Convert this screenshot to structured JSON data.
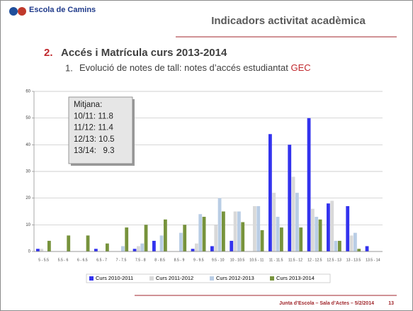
{
  "header": {
    "logo_text": "Escola de Camins",
    "title": "Indicadors activitat acadèmica"
  },
  "section": {
    "number": "2.",
    "title": "Accés i Matrícula curs 2013-2014"
  },
  "subsection": {
    "number": "1.",
    "text": "Evolució de notes de tall: notes d’accés estudiantat ",
    "highlight": "GEC"
  },
  "footer": {
    "text": "Junta d’Escola – Sala d’Actes – 5/2/2014",
    "page": "13"
  },
  "chart_data": {
    "type": "bar",
    "categories": [
      "5 - 5.5",
      "5.5 - 6",
      "6 - 6.5",
      "6.5 - 7",
      "7 - 7.5",
      "7.5 - 8",
      "8 - 8.5",
      "8.5 - 9",
      "9 - 9.5",
      "9.5 - 10",
      "10 - 10.5",
      "10.5 - 11",
      "11 - 11.5",
      "11.5 - 12",
      "12 - 12.5",
      "12.5 - 13",
      "13 - 13.5",
      "13.5 - 14"
    ],
    "series": [
      {
        "name": "Curs 2010-2011",
        "color": "#3333ee",
        "values": [
          1,
          0,
          0,
          1,
          0,
          1,
          4,
          0,
          1,
          2,
          4,
          0,
          44,
          40,
          50,
          18,
          17,
          2
        ]
      },
      {
        "name": "Curs 2011-2012",
        "color": "#d9d9d9",
        "values": [
          1,
          0,
          0,
          0,
          0,
          2,
          0,
          0,
          3,
          10,
          15,
          17,
          22,
          28,
          16,
          19,
          6,
          0
        ]
      },
      {
        "name": "Curs 2012-2013",
        "color": "#b9cde5",
        "values": [
          0,
          0,
          0,
          0,
          2,
          3,
          6,
          7,
          14,
          20,
          15,
          17,
          13,
          22,
          13,
          4,
          7,
          0
        ]
      },
      {
        "name": "Curs 2013-2014",
        "color": "#77933c",
        "values": [
          4,
          6,
          6,
          3,
          9,
          10,
          12,
          10,
          13,
          15,
          11,
          8,
          9,
          9,
          12,
          4,
          1,
          0
        ]
      }
    ],
    "ylim": [
      0,
      60
    ],
    "yticks": [
      0,
      10,
      20,
      30,
      40,
      50,
      60
    ],
    "grid": true,
    "legend": "bottom",
    "annotation": [
      "Mitjana:",
      "10/11: 11.8",
      "11/12: 11.4",
      "12/13: 10.5",
      "13/14:   9.3"
    ]
  }
}
